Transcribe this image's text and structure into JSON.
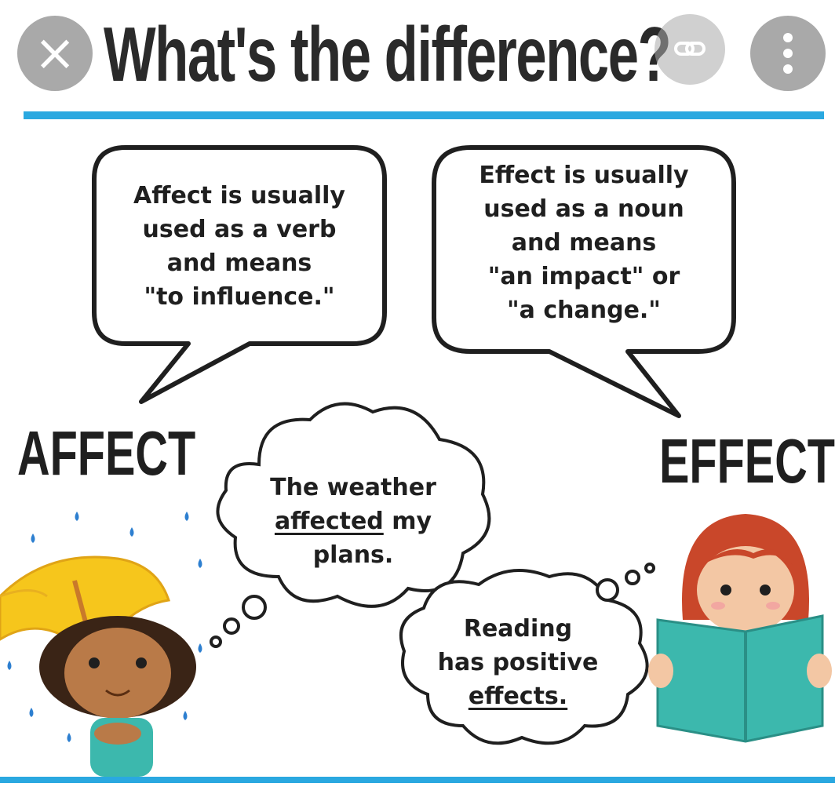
{
  "title": "What's the difference?",
  "overlay": {
    "close_icon": "close-icon",
    "link_icon": "link-icon",
    "more_icon": "more-vertical-icon"
  },
  "bubbles": {
    "affect_definition": [
      "Affect is usually",
      "used as a verb",
      "and means",
      "\"to influence.\""
    ],
    "effect_definition": [
      "Effect is usually",
      "used as a noun",
      "and means",
      "\"an impact\" or",
      "\"a change.\""
    ]
  },
  "labels": {
    "affect": "AFFECT",
    "effect": "EFFECT"
  },
  "thoughts": {
    "affect_example": {
      "line1": "The weather",
      "underlined": "affected",
      "after": " my",
      "line3": "plans."
    },
    "effect_example": {
      "line1": "Reading",
      "line2": "has positive",
      "underlined": "effects."
    }
  },
  "colors": {
    "accent_rule": "#2aa8e0",
    "umbrella": "#f6c61c",
    "book": "#3cb8ad",
    "hair_girl": "#c9472a",
    "raindrop": "#2d7fd0"
  }
}
